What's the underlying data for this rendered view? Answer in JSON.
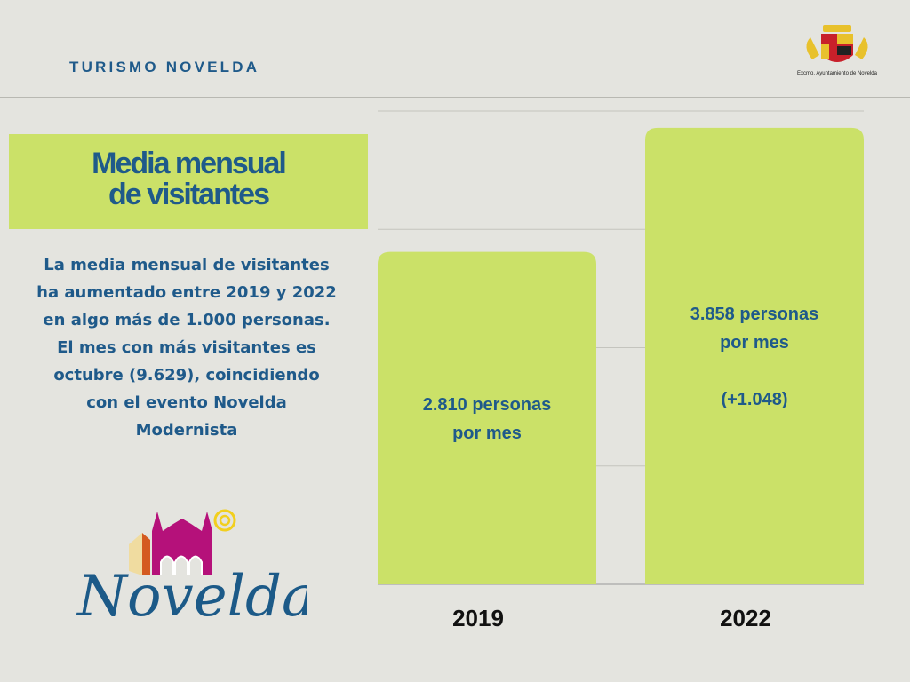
{
  "header": {
    "brand": "TURISMO NOVELDA",
    "crest_caption": "Excmo. Ayuntamiento de Novelda"
  },
  "title": {
    "line1": "Media mensual",
    "line2": "de visitantes"
  },
  "description": "La media mensual de visitantes ha aumentado entre 2019 y 2022 en algo más de 1.000 personas. El mes con más visitantes es octubre (9.629), coincidiendo con el evento Novelda Modernista",
  "logo_text": "Novelda",
  "chart_data": {
    "type": "bar",
    "title": "Media mensual de visitantes",
    "categories": [
      "2019",
      "2022"
    ],
    "values": [
      2810,
      3858
    ],
    "data_labels": [
      [
        "2.810 personas",
        "por mes"
      ],
      [
        "3.858 personas",
        "por mes",
        "",
        "(+1.048)"
      ]
    ],
    "xlabel": "",
    "ylabel": "",
    "ylim": [
      0,
      4000
    ],
    "grid": true,
    "bar_color": "#cbe168"
  }
}
